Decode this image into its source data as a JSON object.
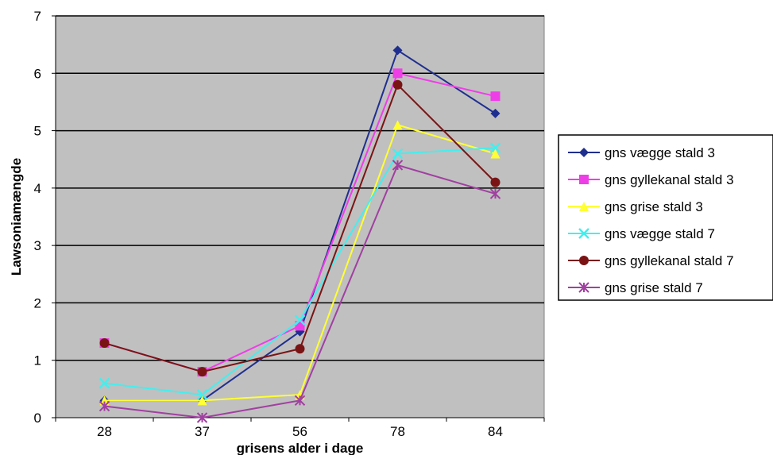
{
  "chart_data": {
    "type": "line",
    "title": "",
    "xlabel": "grisens alder i dage",
    "ylabel": "Lawsoniamængde",
    "categories": [
      "28",
      "37",
      "56",
      "78",
      "84"
    ],
    "ylim": [
      0,
      7
    ],
    "yticks": [
      "0",
      "1",
      "2",
      "3",
      "4",
      "5",
      "6",
      "7"
    ],
    "grid": true,
    "plot_background": "#c0c0c0",
    "legend_position": "right",
    "series": [
      {
        "name": "gns vægge stald 3",
        "values": [
          0.3,
          0.3,
          1.5,
          6.4,
          5.3
        ],
        "color": "#1f2f8f",
        "marker": "diamond"
      },
      {
        "name": "gns gyllekanal stald 3",
        "values": [
          1.3,
          0.8,
          1.6,
          6.0,
          5.6
        ],
        "color": "#ee3ee8",
        "marker": "square"
      },
      {
        "name": "gns grise stald 3",
        "values": [
          0.3,
          0.3,
          0.4,
          5.1,
          4.6
        ],
        "color": "#ffff33",
        "marker": "triangle"
      },
      {
        "name": "gns vægge stald 7",
        "values": [
          0.6,
          0.4,
          1.7,
          4.6,
          4.7
        ],
        "color": "#44eeee",
        "marker": "x"
      },
      {
        "name": "gns gyllekanal stald 7",
        "values": [
          1.3,
          0.8,
          1.2,
          5.8,
          4.1
        ],
        "color": "#7a1414",
        "marker": "circle"
      },
      {
        "name": "gns grise stald 7",
        "values": [
          0.2,
          0.0,
          0.3,
          4.4,
          3.9
        ],
        "color": "#a040a0",
        "marker": "star"
      }
    ]
  }
}
